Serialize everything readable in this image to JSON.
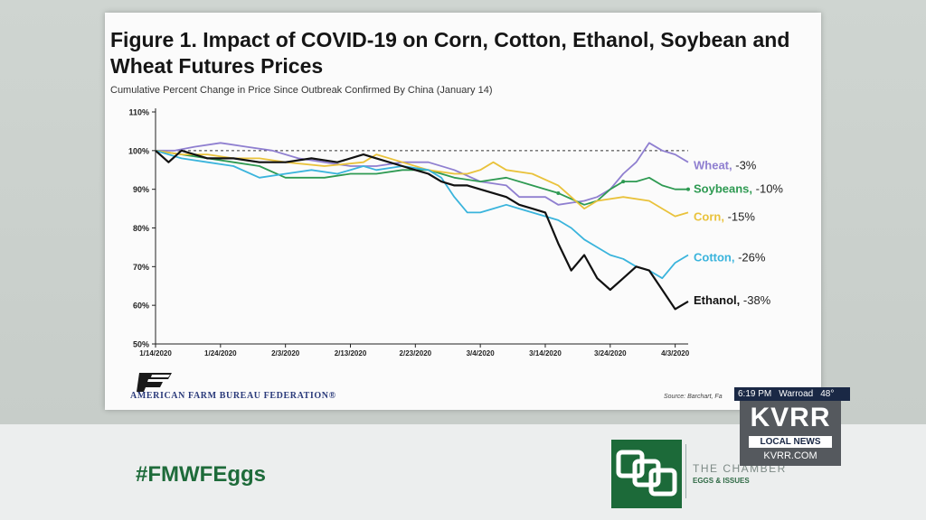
{
  "figure": {
    "title": "Figure 1. Impact of COVID-19 on Corn, Cotton, Ethanol, Soybean and Wheat Futures Prices",
    "subtitle": "Cumulative Percent Change in Price Since Outbreak Confirmed By China (January 14)",
    "source": "Source: Barchart, Fa",
    "org_name": "AMERICAN FARM BUREAU FEDERATION®",
    "logo_text": "FB"
  },
  "chart_data": {
    "type": "line",
    "title": "Figure 1. Impact of COVID-19 on Corn, Cotton, Ethanol, Soybean and Wheat Futures Prices",
    "subtitle": "Cumulative Percent Change in Price Since Outbreak Confirmed By China (January 14)",
    "xlabel": "",
    "ylabel": "",
    "x_ticks": [
      "1/14/2020",
      "1/24/2020",
      "2/3/2020",
      "2/13/2020",
      "2/23/2020",
      "3/4/2020",
      "3/14/2020",
      "3/24/2020",
      "4/3/2020"
    ],
    "y_ticks": [
      "50%",
      "60%",
      "70%",
      "80%",
      "90%",
      "100%",
      "110%"
    ],
    "xlim": [
      0,
      82
    ],
    "ylim": [
      50,
      110
    ],
    "reference_line": 100,
    "grid": false,
    "series": [
      {
        "name": "Wheat",
        "end_label": "Wheat, -3%",
        "color": "#8f7fd0",
        "x": [
          0,
          3,
          6,
          10,
          14,
          18,
          22,
          26,
          30,
          34,
          38,
          42,
          46,
          50,
          54,
          56,
          60,
          62,
          66,
          68,
          70,
          72,
          74,
          76,
          78,
          80,
          82
        ],
        "y": [
          100,
          100,
          101,
          102,
          101,
          100,
          98,
          97,
          96,
          96,
          97,
          97,
          95,
          92,
          91,
          88,
          88,
          86,
          87,
          88,
          90,
          94,
          97,
          102,
          100,
          99,
          97
        ]
      },
      {
        "name": "Soybeans",
        "end_label": "Soybeans, -10%",
        "color": "#2e9a52",
        "x": [
          0,
          4,
          8,
          12,
          16,
          20,
          26,
          30,
          34,
          38,
          42,
          46,
          50,
          54,
          58,
          62,
          66,
          68,
          70,
          72,
          74,
          76,
          78,
          80,
          82
        ],
        "y": [
          100,
          99,
          98,
          97,
          96,
          93,
          93,
          94,
          94,
          95,
          95,
          93,
          92,
          93,
          91,
          89,
          86,
          87,
          90,
          92,
          92,
          93,
          91,
          90,
          90
        ],
        "highlight_x": [
          62,
          72,
          82
        ],
        "highlight_y": [
          89,
          92,
          90
        ]
      },
      {
        "name": "Corn",
        "end_label": "Corn, -15%",
        "color": "#e9c23b",
        "x": [
          0,
          4,
          8,
          12,
          16,
          20,
          26,
          32,
          34,
          38,
          42,
          46,
          48,
          50,
          52,
          54,
          58,
          62,
          64,
          66,
          68,
          72,
          76,
          78,
          80,
          82
        ],
        "y": [
          100,
          99,
          99,
          98,
          98,
          97,
          96,
          97,
          99,
          97,
          95,
          94,
          94,
          95,
          97,
          95,
          94,
          91,
          88,
          85,
          87,
          88,
          87,
          85,
          83,
          84
        ]
      },
      {
        "name": "Cotton",
        "end_label": "Cotton, -26%",
        "color": "#3ab4dc",
        "x": [
          0,
          4,
          8,
          12,
          16,
          20,
          24,
          28,
          32,
          34,
          38,
          42,
          44,
          46,
          48,
          50,
          52,
          54,
          56,
          58,
          60,
          62,
          64,
          66,
          68,
          70,
          72,
          74,
          76,
          78,
          80,
          82
        ],
        "y": [
          100,
          98,
          97,
          96,
          93,
          94,
          95,
          94,
          96,
          95,
          96,
          95,
          93,
          88,
          84,
          84,
          85,
          86,
          85,
          84,
          83,
          82,
          80,
          77,
          75,
          73,
          72,
          70,
          69,
          67,
          71,
          73
        ]
      },
      {
        "name": "Ethanol",
        "end_label": "Ethanol, -38%",
        "color": "#111111",
        "x": [
          0,
          2,
          4,
          8,
          12,
          16,
          20,
          24,
          28,
          32,
          34,
          38,
          40,
          42,
          44,
          46,
          48,
          50,
          52,
          54,
          56,
          58,
          60,
          61,
          62,
          64,
          66,
          68,
          70,
          72,
          74,
          76,
          78,
          80,
          82
        ],
        "y": [
          100,
          97,
          100,
          98,
          98,
          97,
          97,
          98,
          97,
          99,
          98,
          96,
          95,
          94,
          92,
          91,
          91,
          90,
          89,
          88,
          86,
          85,
          84,
          80,
          76,
          69,
          73,
          67,
          64,
          67,
          70,
          69,
          64,
          59,
          61
        ]
      }
    ]
  },
  "overlay": {
    "hashtag": "#FMWFEggs",
    "chamber_name": "THE CHAMBER",
    "chamber_sub": "EGGS & ISSUES",
    "time": "6:19 PM",
    "location": "Warroad",
    "temperature": "48°",
    "station": "KVRR",
    "tagline": "LOCAL NEWS",
    "website": "KVRR.COM",
    "colors": {
      "brand_green": "#1c6a39",
      "station_navy": "#1a2845"
    }
  }
}
